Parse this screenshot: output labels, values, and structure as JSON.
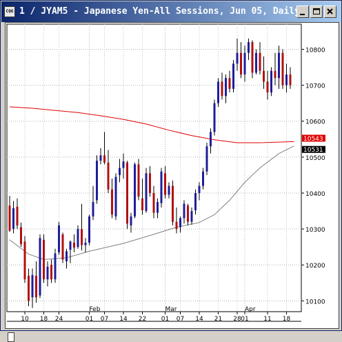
{
  "window": {
    "title": "1 / JYAM5 - Japanese Yen-All Sessions, Jun 05, Daily",
    "icon_label": "CQG",
    "buttons": [
      "minimize",
      "maximize",
      "close"
    ]
  },
  "chart_data": {
    "type": "candlestick",
    "title": "1 / JYAM5 - Japanese Yen-All Sessions, Jun 05, Daily",
    "ylim": [
      10070,
      10870
    ],
    "y_ticks": [
      10100,
      10200,
      10300,
      10400,
      10500,
      10600,
      10700,
      10800
    ],
    "y_tick_labels": [
      "10100",
      "10200",
      "10300",
      "10400",
      "10500",
      "10600",
      "10700",
      "10800"
    ],
    "month_labels": [
      {
        "label": "Feb",
        "index": 21
      },
      {
        "label": "Mar",
        "index": 41
      },
      {
        "label": "Apr",
        "index": 62
      }
    ],
    "day_labels": [
      {
        "label": "10",
        "index": 4
      },
      {
        "label": "18",
        "index": 9
      },
      {
        "label": "24",
        "index": 13
      },
      {
        "label": "01",
        "index": 21
      },
      {
        "label": "07",
        "index": 25
      },
      {
        "label": "14",
        "index": 30
      },
      {
        "label": "22",
        "index": 35
      },
      {
        "label": "01",
        "index": 41
      },
      {
        "label": "07",
        "index": 45
      },
      {
        "label": "14",
        "index": 50
      },
      {
        "label": "21",
        "index": 55
      },
      {
        "label": "28",
        "index": 60
      },
      {
        "label": "01",
        "index": 62
      },
      {
        "label": "11",
        "index": 68
      },
      {
        "label": "18",
        "index": 73
      }
    ],
    "last_value_labels": [
      {
        "value": 10543,
        "color": "#e00000",
        "series": "red"
      },
      {
        "value": 10531,
        "color": "#000000",
        "series": "gray"
      }
    ],
    "candles": [
      [
        10365,
        10392,
        10292,
        10295
      ],
      [
        10300,
        10378,
        10288,
        10358
      ],
      [
        10362,
        10385,
        10300,
        10310
      ],
      [
        10305,
        10318,
        10250,
        10258
      ],
      [
        10265,
        10280,
        10150,
        10160
      ],
      [
        10170,
        10190,
        10085,
        10100
      ],
      [
        10110,
        10190,
        10080,
        10172
      ],
      [
        10170,
        10210,
        10095,
        10110
      ],
      [
        10115,
        10285,
        10108,
        10275
      ],
      [
        10270,
        10285,
        10150,
        10160
      ],
      [
        10160,
        10210,
        10140,
        10195
      ],
      [
        10200,
        10215,
        10150,
        10160
      ],
      [
        10160,
        10245,
        10150,
        10232
      ],
      [
        10235,
        10320,
        10228,
        10310
      ],
      [
        10285,
        10290,
        10205,
        10215
      ],
      [
        10210,
        10245,
        10190,
        10238
      ],
      [
        10242,
        10268,
        10205,
        10265
      ],
      [
        10262,
        10285,
        10235,
        10248
      ],
      [
        10250,
        10310,
        10245,
        10300
      ],
      [
        10300,
        10370,
        10240,
        10255
      ],
      [
        10255,
        10275,
        10235,
        10262
      ],
      [
        10262,
        10340,
        10255,
        10335
      ],
      [
        10335,
        10420,
        10325,
        10375
      ],
      [
        10380,
        10505,
        10370,
        10490
      ],
      [
        10490,
        10525,
        10480,
        10505
      ],
      [
        10505,
        10570,
        10480,
        10485
      ],
      [
        10485,
        10520,
        10400,
        10410
      ],
      [
        10410,
        10440,
        10330,
        10340
      ],
      [
        10335,
        10455,
        10325,
        10445
      ],
      [
        10450,
        10495,
        10430,
        10470
      ],
      [
        10470,
        10510,
        10440,
        10488
      ],
      [
        10485,
        10490,
        10300,
        10315
      ],
      [
        10310,
        10345,
        10290,
        10335
      ],
      [
        10335,
        10485,
        10330,
        10480
      ],
      [
        10480,
        10495,
        10380,
        10390
      ],
      [
        10385,
        10440,
        10340,
        10352
      ],
      [
        10350,
        10470,
        10345,
        10455
      ],
      [
        10455,
        10475,
        10390,
        10400
      ],
      [
        10400,
        10420,
        10330,
        10345
      ],
      [
        10345,
        10385,
        10330,
        10375
      ],
      [
        10372,
        10470,
        10360,
        10460
      ],
      [
        10455,
        10475,
        10385,
        10395
      ],
      [
        10395,
        10430,
        10385,
        10420
      ],
      [
        10420,
        10435,
        10310,
        10320
      ],
      [
        10320,
        10360,
        10288,
        10300
      ],
      [
        10305,
        10335,
        10290,
        10330
      ],
      [
        10330,
        10380,
        10315,
        10370
      ],
      [
        10365,
        10370,
        10310,
        10320
      ],
      [
        10320,
        10360,
        10312,
        10350
      ],
      [
        10352,
        10410,
        10340,
        10400
      ],
      [
        10400,
        10430,
        10380,
        10420
      ],
      [
        10420,
        10470,
        10410,
        10460
      ],
      [
        10460,
        10540,
        10450,
        10530
      ],
      [
        10530,
        10580,
        10510,
        10570
      ],
      [
        10570,
        10660,
        10560,
        10650
      ],
      [
        10650,
        10720,
        10640,
        10710
      ],
      [
        10710,
        10735,
        10660,
        10670
      ],
      [
        10670,
        10730,
        10650,
        10720
      ],
      [
        10720,
        10740,
        10680,
        10690
      ],
      [
        10690,
        10770,
        10680,
        10760
      ],
      [
        10760,
        10830,
        10740,
        10790
      ],
      [
        10790,
        10820,
        10720,
        10730
      ],
      [
        10730,
        10810,
        10710,
        10790
      ],
      [
        10790,
        10830,
        10770,
        10820
      ],
      [
        10820,
        10825,
        10720,
        10735
      ],
      [
        10735,
        10800,
        10730,
        10790
      ],
      [
        10790,
        10820,
        10730,
        10740
      ],
      [
        10740,
        10780,
        10690,
        10710
      ],
      [
        10710,
        10740,
        10660,
        10680
      ],
      [
        10680,
        10750,
        10670,
        10740
      ],
      [
        10740,
        10790,
        10700,
        10720
      ],
      [
        10720,
        10810,
        10690,
        10790
      ],
      [
        10790,
        10800,
        10690,
        10700
      ],
      [
        10700,
        10760,
        10680,
        10730
      ],
      [
        10730,
        10750,
        10690,
        10700
      ]
    ],
    "series": [
      {
        "color": "#e00000",
        "values": [
          [
            0,
            10640
          ],
          [
            6,
            10636
          ],
          [
            12,
            10630
          ],
          [
            18,
            10624
          ],
          [
            24,
            10615
          ],
          [
            30,
            10605
          ],
          [
            36,
            10592
          ],
          [
            42,
            10575
          ],
          [
            48,
            10560
          ],
          [
            54,
            10548
          ],
          [
            60,
            10540
          ],
          [
            66,
            10540
          ],
          [
            75,
            10543
          ]
        ]
      },
      {
        "color": "#808080",
        "values": [
          [
            0,
            10270
          ],
          [
            5,
            10230
          ],
          [
            9,
            10215
          ],
          [
            15,
            10220
          ],
          [
            21,
            10238
          ],
          [
            30,
            10260
          ],
          [
            38,
            10285
          ],
          [
            44,
            10305
          ],
          [
            50,
            10318
          ],
          [
            54,
            10340
          ],
          [
            58,
            10380
          ],
          [
            62,
            10430
          ],
          [
            66,
            10470
          ],
          [
            71,
            10510
          ],
          [
            75,
            10531
          ]
        ]
      }
    ]
  }
}
